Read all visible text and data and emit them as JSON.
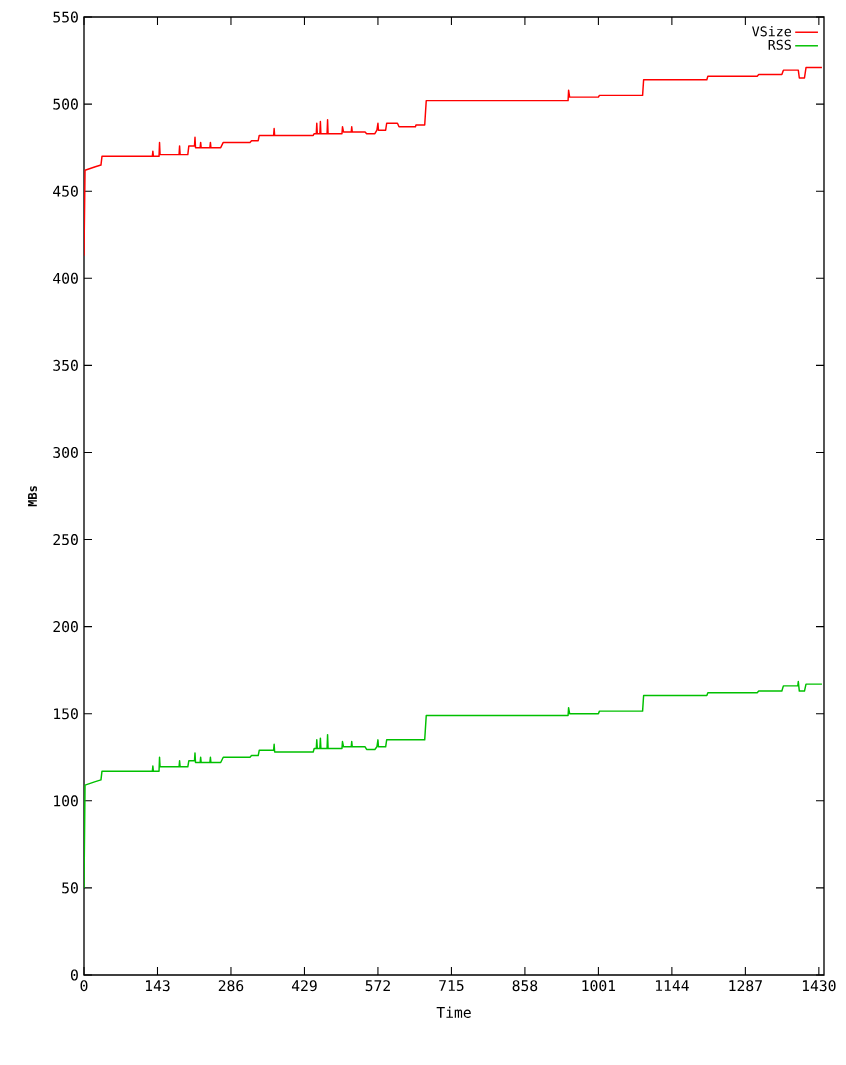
{
  "chart_data": {
    "type": "line",
    "xlabel": "Time",
    "ylabel": "MBs",
    "xlim": [
      0,
      1440
    ],
    "ylim": [
      0,
      550
    ],
    "xticks": [
      0,
      143,
      286,
      429,
      572,
      715,
      858,
      1001,
      1144,
      1287,
      1430
    ],
    "yticks": [
      0,
      50,
      100,
      150,
      200,
      250,
      300,
      350,
      400,
      450,
      500,
      550
    ],
    "grid": false,
    "legend": "top right",
    "series": [
      {
        "name": "VSize",
        "color": "#ff0000",
        "x": [
          0,
          2,
          22,
          33,
          35,
          133,
          134,
          135,
          146,
          147,
          148,
          185,
          186,
          187,
          202,
          204,
          215,
          216,
          217,
          226,
          227,
          228,
          245,
          246,
          247,
          266,
          271,
          323,
          326,
          339,
          341,
          369,
          370,
          371,
          446,
          448,
          452,
          453,
          454,
          459,
          460,
          461,
          473,
          474,
          475,
          502,
          503,
          505,
          520,
          521,
          522,
          547,
          550,
          566,
          570,
          572,
          573,
          587,
          589,
          610,
          613,
          645,
          646,
          663,
          666,
          942,
          943,
          945,
          1001,
          1003,
          1087,
          1089,
          1212,
          1214,
          1310,
          1313,
          1358,
          1361,
          1390,
          1392,
          1402,
          1405,
          1436
        ],
        "values": [
          413,
          462,
          464,
          465,
          470,
          470,
          473,
          470,
          470,
          478,
          471,
          471,
          476,
          471,
          471,
          476,
          476,
          481,
          475,
          475,
          478,
          475,
          475,
          478,
          475,
          475,
          478,
          478,
          479,
          479,
          482,
          482,
          486,
          482,
          482,
          483,
          483,
          489,
          483,
          483,
          490,
          483,
          483,
          491,
          483,
          483,
          487,
          484,
          484,
          487,
          484,
          484,
          483,
          483,
          485,
          489,
          485,
          485,
          489,
          489,
          487,
          487,
          488,
          488,
          502,
          502,
          508,
          504,
          504,
          505,
          505,
          514,
          514,
          516,
          516,
          517,
          517,
          519.5,
          519.5,
          515,
          515,
          521,
          521
        ]
      },
      {
        "name": "RSS",
        "color": "#00c000",
        "x": [
          0,
          2,
          22,
          33,
          35,
          133,
          134,
          135,
          146,
          147,
          148,
          185,
          186,
          187,
          202,
          204,
          215,
          216,
          217,
          226,
          227,
          228,
          245,
          246,
          247,
          266,
          271,
          323,
          326,
          339,
          341,
          369,
          370,
          371,
          446,
          448,
          452,
          453,
          454,
          459,
          460,
          461,
          473,
          474,
          475,
          502,
          503,
          505,
          520,
          521,
          522,
          547,
          550,
          566,
          570,
          572,
          573,
          587,
          589,
          663,
          666,
          942,
          943,
          945,
          1001,
          1003,
          1087,
          1089,
          1212,
          1214,
          1310,
          1313,
          1358,
          1361,
          1389,
          1390,
          1392,
          1402,
          1405,
          1436
        ],
        "values": [
          50,
          109,
          111,
          112,
          117,
          117,
          120,
          117,
          117,
          125,
          119.5,
          119.5,
          123,
          119.5,
          119.5,
          123,
          123,
          127.5,
          122,
          122,
          125,
          122,
          122,
          125,
          122,
          122,
          125,
          125,
          126,
          126,
          129,
          129,
          132.5,
          128,
          128,
          130,
          130,
          135,
          130,
          130,
          136,
          130,
          130,
          138,
          130,
          130,
          134,
          131,
          131,
          134,
          131,
          131,
          129.5,
          129.5,
          131,
          135,
          131,
          131,
          135,
          135,
          149,
          149,
          153.5,
          150,
          150,
          151.5,
          151.5,
          160.5,
          160.5,
          162,
          162,
          163,
          163,
          166,
          166,
          168.5,
          163,
          163,
          167,
          167
        ]
      }
    ]
  }
}
